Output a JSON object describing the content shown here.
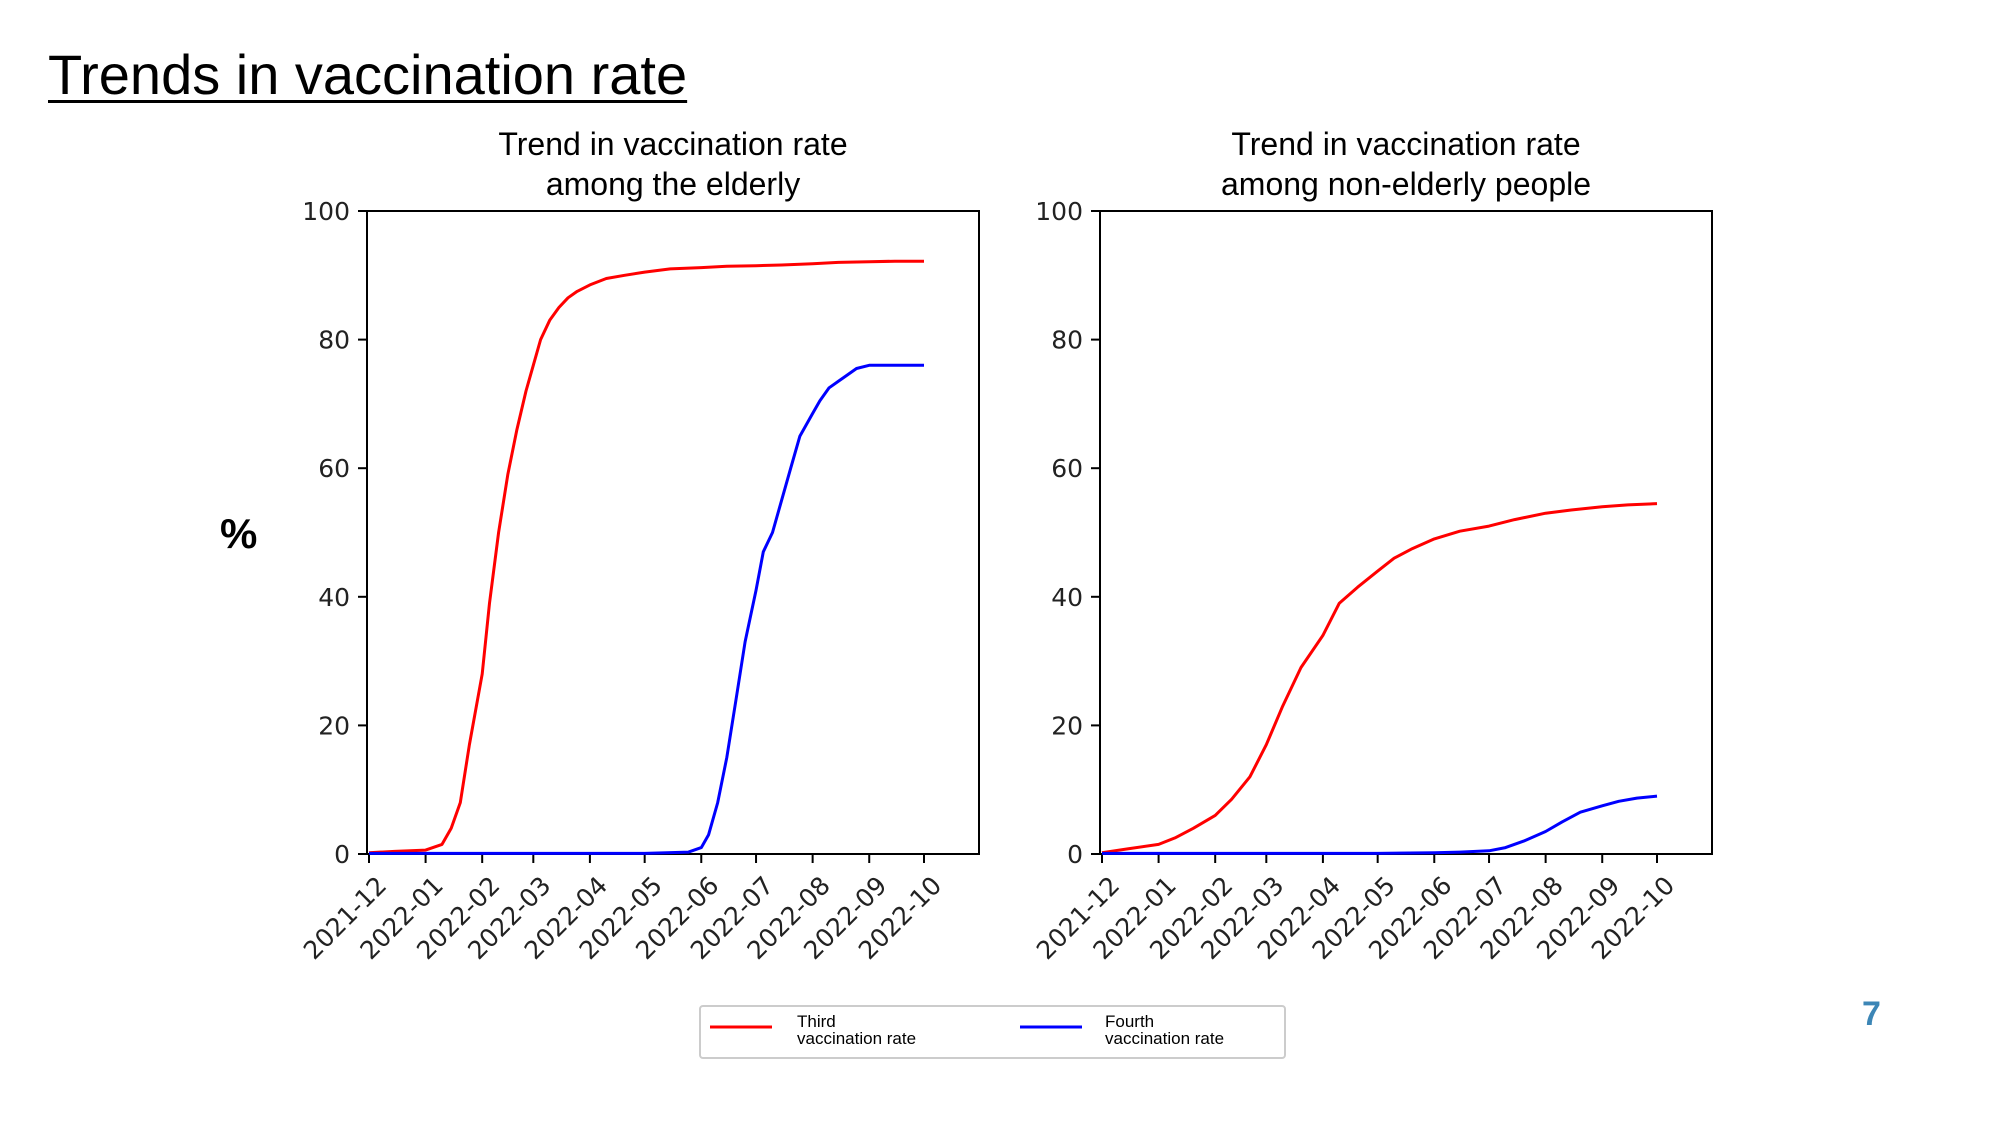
{
  "slide": {
    "title": "Trends in vaccination rate",
    "y_unit": "%",
    "page_number": "7"
  },
  "legend": {
    "items": [
      {
        "label_line1": "Third",
        "label_line2": "vaccination rate",
        "color": "#ff0000"
      },
      {
        "label_line1": "Fourth",
        "label_line2": "vaccination rate",
        "color": "#0000ff"
      }
    ]
  },
  "chart_data": [
    {
      "type": "line",
      "title": [
        "Trend in vaccination rate",
        "among the elderly"
      ],
      "xlabel": "",
      "ylabel": "%",
      "x_ticks": [
        "2021-12",
        "2022-01",
        "2022-02",
        "2022-03",
        "2022-04",
        "2022-05",
        "2022-06",
        "2022-07",
        "2022-08",
        "2022-09",
        "2022-10"
      ],
      "xlim": [
        "2021-12-01",
        "2022-10-01"
      ],
      "y_ticks": [
        0,
        20,
        40,
        60,
        80,
        100
      ],
      "ylim": [
        0,
        100
      ],
      "grid": false,
      "series": [
        {
          "name": "Third vaccination rate",
          "color": "#ff0000",
          "x": [
            "2021-12-01",
            "2021-12-15",
            "2022-01-01",
            "2022-01-10",
            "2022-01-15",
            "2022-01-20",
            "2022-01-25",
            "2022-02-01",
            "2022-02-05",
            "2022-02-10",
            "2022-02-15",
            "2022-02-20",
            "2022-02-25",
            "2022-03-01",
            "2022-03-05",
            "2022-03-10",
            "2022-03-15",
            "2022-03-20",
            "2022-03-25",
            "2022-04-01",
            "2022-04-10",
            "2022-04-20",
            "2022-05-01",
            "2022-05-15",
            "2022-06-01",
            "2022-06-15",
            "2022-07-01",
            "2022-07-15",
            "2022-08-01",
            "2022-08-15",
            "2022-09-01",
            "2022-09-15",
            "2022-10-01"
          ],
          "values": [
            0.2,
            0.4,
            0.6,
            1.5,
            4,
            8,
            17,
            28,
            39,
            50,
            59,
            66,
            72,
            76,
            80,
            83,
            85,
            86.5,
            87.5,
            88.5,
            89.5,
            90,
            90.5,
            91,
            91.2,
            91.4,
            91.5,
            91.6,
            91.8,
            92,
            92.1,
            92.2,
            92.2
          ]
        },
        {
          "name": "Fourth vaccination rate",
          "color": "#0000ff",
          "x": [
            "2021-12-01",
            "2022-05-01",
            "2022-05-25",
            "2022-06-01",
            "2022-06-05",
            "2022-06-10",
            "2022-06-15",
            "2022-06-20",
            "2022-06-25",
            "2022-07-01",
            "2022-07-05",
            "2022-07-10",
            "2022-07-15",
            "2022-07-20",
            "2022-07-25",
            "2022-08-01",
            "2022-08-05",
            "2022-08-10",
            "2022-08-15",
            "2022-08-20",
            "2022-08-25",
            "2022-09-01",
            "2022-09-10",
            "2022-09-20",
            "2022-10-01"
          ],
          "values": [
            0.1,
            0.1,
            0.3,
            1,
            3,
            8,
            15,
            24,
            33,
            41,
            47,
            50,
            55,
            60,
            65,
            68.5,
            70.5,
            72.5,
            73.5,
            74.5,
            75.5,
            76,
            76,
            76,
            76
          ]
        }
      ]
    },
    {
      "type": "line",
      "title": [
        "Trend in vaccination rate",
        "among non-elderly people"
      ],
      "xlabel": "",
      "ylabel": "%",
      "x_ticks": [
        "2021-12",
        "2022-01",
        "2022-02",
        "2022-03",
        "2022-04",
        "2022-05",
        "2022-06",
        "2022-07",
        "2022-08",
        "2022-09",
        "2022-10"
      ],
      "xlim": [
        "2021-12-01",
        "2022-10-01"
      ],
      "y_ticks": [
        0,
        20,
        40,
        60,
        80,
        100
      ],
      "ylim": [
        0,
        100
      ],
      "grid": false,
      "series": [
        {
          "name": "Third vaccination rate",
          "color": "#ff0000",
          "x": [
            "2021-12-01",
            "2021-12-15",
            "2022-01-01",
            "2022-01-10",
            "2022-01-20",
            "2022-02-01",
            "2022-02-10",
            "2022-02-20",
            "2022-03-01",
            "2022-03-10",
            "2022-03-20",
            "2022-04-01",
            "2022-04-10",
            "2022-04-20",
            "2022-05-01",
            "2022-05-10",
            "2022-05-20",
            "2022-06-01",
            "2022-06-15",
            "2022-07-01",
            "2022-07-15",
            "2022-08-01",
            "2022-08-15",
            "2022-09-01",
            "2022-09-15",
            "2022-10-01"
          ],
          "values": [
            0.2,
            0.8,
            1.5,
            2.5,
            4,
            6,
            8.5,
            12,
            17,
            23,
            29,
            34,
            39,
            41.5,
            44,
            46,
            47.5,
            49,
            50.2,
            51,
            52,
            53,
            53.5,
            54,
            54.3,
            54.5
          ]
        },
        {
          "name": "Fourth vaccination rate",
          "color": "#0000ff",
          "x": [
            "2021-12-01",
            "2022-05-01",
            "2022-06-01",
            "2022-06-15",
            "2022-07-01",
            "2022-07-10",
            "2022-07-20",
            "2022-08-01",
            "2022-08-10",
            "2022-08-20",
            "2022-09-01",
            "2022-09-10",
            "2022-09-20",
            "2022-10-01"
          ],
          "values": [
            0.1,
            0.1,
            0.2,
            0.3,
            0.5,
            1,
            2,
            3.5,
            5,
            6.5,
            7.5,
            8.2,
            8.7,
            9
          ]
        }
      ]
    }
  ]
}
